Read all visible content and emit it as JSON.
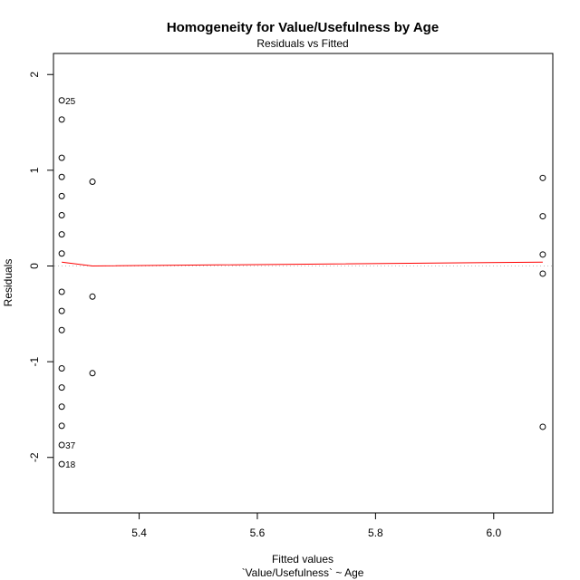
{
  "chart_data": {
    "type": "scatter",
    "title": "Homogeneity for Value/Usefulness by Age",
    "subtitle": "Residuals vs Fitted",
    "xlabel": "Fitted values",
    "xlabel2": "`Value/Usefulness` ~ Age",
    "ylabel": "Residuals",
    "xlim": [
      5.255,
      6.1
    ],
    "ylim": [
      -2.58,
      2.22
    ],
    "x_ticks": [
      5.4,
      5.6,
      5.8,
      6.0
    ],
    "x_tick_labels": [
      "5.4",
      "5.6",
      "5.8",
      "6.0"
    ],
    "y_ticks": [
      -2,
      -1,
      0,
      1,
      2
    ],
    "y_tick_labels": [
      "-2",
      "-1",
      "0",
      "1",
      "2"
    ],
    "points": [
      {
        "x": 5.269,
        "y": 1.73
      },
      {
        "x": 5.269,
        "y": 1.53
      },
      {
        "x": 5.269,
        "y": 1.13
      },
      {
        "x": 5.269,
        "y": 0.93
      },
      {
        "x": 5.269,
        "y": 0.73
      },
      {
        "x": 5.269,
        "y": 0.53
      },
      {
        "x": 5.269,
        "y": 0.33
      },
      {
        "x": 5.269,
        "y": 0.13
      },
      {
        "x": 5.269,
        "y": -0.27
      },
      {
        "x": 5.269,
        "y": -0.47
      },
      {
        "x": 5.269,
        "y": -0.67
      },
      {
        "x": 5.269,
        "y": -1.07
      },
      {
        "x": 5.269,
        "y": -1.27
      },
      {
        "x": 5.269,
        "y": -1.47
      },
      {
        "x": 5.269,
        "y": -1.67
      },
      {
        "x": 5.269,
        "y": -1.87
      },
      {
        "x": 5.269,
        "y": -2.07
      },
      {
        "x": 5.321,
        "y": 0.88
      },
      {
        "x": 5.321,
        "y": -0.32
      },
      {
        "x": 5.321,
        "y": -1.12
      },
      {
        "x": 6.083,
        "y": 0.92
      },
      {
        "x": 6.083,
        "y": 0.52
      },
      {
        "x": 6.083,
        "y": 0.12
      },
      {
        "x": 6.083,
        "y": -0.08
      },
      {
        "x": 6.083,
        "y": -1.68
      }
    ],
    "point_labels": [
      {
        "x": 5.269,
        "y": 1.73,
        "text": "25"
      },
      {
        "x": 5.269,
        "y": -1.87,
        "text": "37"
      },
      {
        "x": 5.269,
        "y": -2.07,
        "text": "18"
      }
    ],
    "smooth_line": {
      "x": [
        5.269,
        5.321,
        6.083
      ],
      "y": [
        0.04,
        0.0,
        0.04
      ],
      "color": "#ff0000"
    },
    "reference_line": {
      "y": 0,
      "color": "#bbbbbb",
      "style": "dotted"
    },
    "point_color": "#000000",
    "grid": false
  }
}
